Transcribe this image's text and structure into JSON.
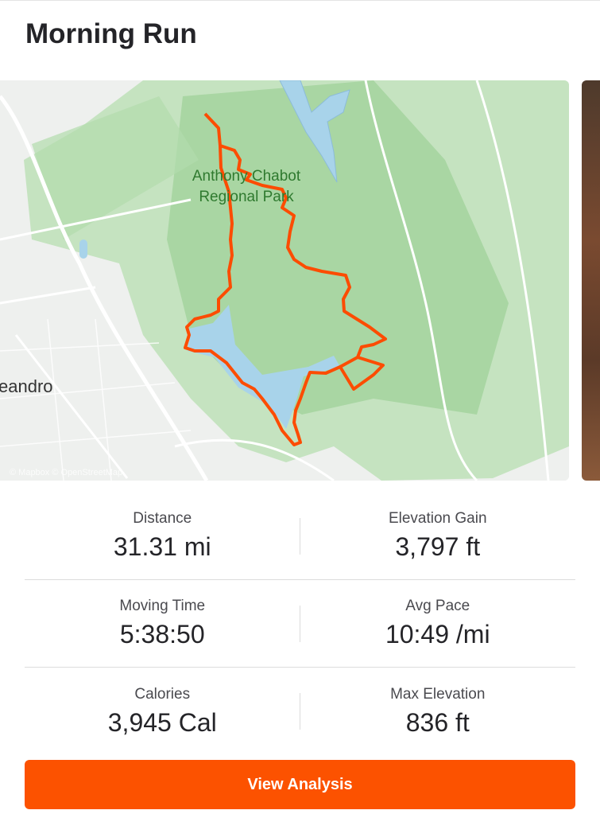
{
  "activity": {
    "title": "Morning Run"
  },
  "map": {
    "park_label_line1": "Anthony Chabot",
    "park_label_line2": "Regional Park",
    "city_label": "eandro",
    "attribution": "© Mapbox © OpenStreetMap",
    "route_color": "#fc4c02"
  },
  "stats": [
    [
      {
        "label": "Distance",
        "value": "31.31 mi"
      },
      {
        "label": "Elevation Gain",
        "value": "3,797 ft"
      }
    ],
    [
      {
        "label": "Moving Time",
        "value": "5:38:50"
      },
      {
        "label": "Avg Pace",
        "value": "10:49 /mi"
      }
    ],
    [
      {
        "label": "Calories",
        "value": "3,945 Cal"
      },
      {
        "label": "Max Elevation",
        "value": "836 ft"
      }
    ]
  ],
  "actions": {
    "view_analysis": "View Analysis"
  },
  "colors": {
    "accent": "#fc5200"
  }
}
